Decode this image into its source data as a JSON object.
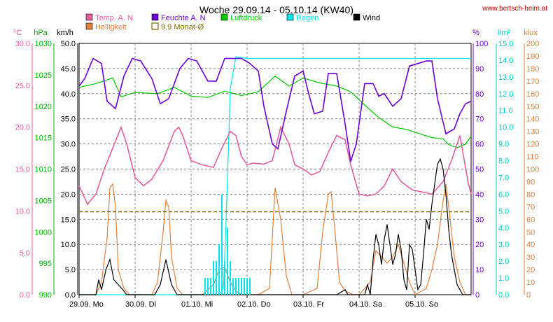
{
  "header": {
    "title": "Woche 29.09.14 - 05.10.14 (KW40)",
    "website": "www.bertsch-heim.at"
  },
  "colors": {
    "temp": "#e060a0",
    "humidity": "#6a00d0",
    "pressure": "#00c800",
    "rain": "#00e6e6",
    "wind": "#000000",
    "brightness": "#e08040",
    "avg": "#7a6a00",
    "pressure_axis": "#00b000",
    "rain_axis": "#00c8c8",
    "hum_axis": "#6a00d0",
    "klux_axis": "#e08040"
  },
  "legend": [
    {
      "label": "Temp. A. N",
      "color": "#e060a0"
    },
    {
      "label": "Feuchte A. N",
      "color": "#6a00d0"
    },
    {
      "label": "Luftdruck",
      "color": "#00c800"
    },
    {
      "label": "Regen",
      "color": "#00e6e6"
    },
    {
      "label": "Wind",
      "color": "#000000"
    },
    {
      "label": "Helligkeit",
      "color": "#e08040"
    },
    {
      "label": "9.9 Monat-Ø",
      "color": "#7a6a00"
    }
  ],
  "axes": {
    "temp": {
      "unit": "°C",
      "ticks": [
        "30.0",
        "25.0",
        "20.0",
        "15.0",
        "10.0",
        "5.0",
        "0.0"
      ]
    },
    "pressure": {
      "unit": "hPa",
      "ticks": [
        "1030",
        "1025",
        "1020",
        "1015",
        "1010",
        "1005",
        "1000",
        "995",
        "990"
      ]
    },
    "wind": {
      "unit": "km/h",
      "ticks": [
        "50.0",
        "45.0",
        "40.0",
        "35.0",
        "30.0",
        "25.0",
        "20.0",
        "15.0",
        "10.0",
        "5.0",
        "0.0"
      ]
    },
    "humidity": {
      "unit": "%",
      "ticks": [
        "100",
        "90",
        "80",
        "70",
        "60",
        "50",
        "40",
        "30",
        "20",
        "10",
        "0"
      ]
    },
    "rain": {
      "unit": "l/m²",
      "ticks": [
        "15.0",
        "14.0",
        "13.0",
        "12.0",
        "11.0",
        "10.0",
        "9.0",
        "8.0",
        "7.0",
        "6.0",
        "5.0",
        "4.0",
        "3.0",
        "2.0",
        "1.0",
        "0.0"
      ]
    },
    "klux": {
      "unit": "klux",
      "ticks": [
        "200",
        "190",
        "180",
        "170",
        "160",
        "150",
        "140",
        "130",
        "120",
        "110",
        "100",
        "90",
        "80",
        "70",
        "60",
        "50",
        "40",
        "30",
        "20",
        "10",
        "0"
      ]
    },
    "x": {
      "ticks": [
        "29.09.  Mo",
        "30.09.  Di",
        "01.10.  Mi",
        "02.10.  Do",
        "03.10.  Fr",
        "04.10.  Sa",
        "05.10.  So"
      ]
    }
  },
  "chart_data": {
    "type": "line",
    "title": "Woche 29.09.14 - 05.10.14 (KW40)",
    "x_unit": "days",
    "x_range": [
      0,
      7
    ],
    "ranges": {
      "temp": [
        0,
        30
      ],
      "pressure": [
        990,
        1030
      ],
      "wind": [
        0,
        50
      ],
      "humidity": [
        0,
        100
      ],
      "rain": [
        0,
        15
      ],
      "klux": [
        0,
        200
      ]
    },
    "series": [
      {
        "name": "Temp. A. N",
        "axis": "temp",
        "x": [
          0,
          0.15,
          0.3,
          0.45,
          0.6,
          0.75,
          0.85,
          1.0,
          1.15,
          1.3,
          1.5,
          1.7,
          1.78,
          1.85,
          2.0,
          2.2,
          2.4,
          2.55,
          2.7,
          2.8,
          2.9,
          3.0,
          3.1,
          3.3,
          3.45,
          3.6,
          3.75,
          3.85,
          4.0,
          4.15,
          4.3,
          4.45,
          4.6,
          4.75,
          4.85,
          5.0,
          5.15,
          5.3,
          5.45,
          5.6,
          5.75,
          5.95,
          6.1,
          6.3,
          6.5,
          6.65,
          6.8,
          6.95,
          7.0
        ],
        "values": [
          13,
          10.8,
          12,
          15,
          17.5,
          20,
          18,
          14,
          13,
          13.8,
          16,
          19.5,
          20,
          19,
          16,
          15.5,
          15.2,
          17.5,
          19.5,
          19,
          16.5,
          15.5,
          15.7,
          15.6,
          16,
          20,
          18,
          15.5,
          15,
          14.3,
          14.7,
          17,
          19,
          18.5,
          15.5,
          12,
          11.8,
          12,
          13,
          15,
          13.5,
          12.5,
          12.3,
          12,
          13.5,
          16,
          19,
          13.3,
          12
        ]
      },
      {
        "name": "Feuchte A. N",
        "axis": "humidity",
        "x": [
          0,
          0.1,
          0.25,
          0.4,
          0.5,
          0.65,
          0.8,
          0.95,
          1.1,
          1.3,
          1.45,
          1.6,
          1.8,
          1.95,
          2.1,
          2.3,
          2.45,
          2.6,
          2.75,
          2.9,
          3.05,
          3.2,
          3.3,
          3.45,
          3.55,
          3.6,
          3.7,
          3.85,
          4.0,
          4.1,
          4.2,
          4.35,
          4.45,
          4.6,
          4.75,
          4.85,
          4.95,
          5.1,
          5.25,
          5.35,
          5.45,
          5.6,
          5.75,
          5.9,
          6.05,
          6.2,
          6.3,
          6.4,
          6.55,
          6.7,
          6.8,
          6.9,
          7.0
        ],
        "values": [
          83,
          86,
          94,
          92,
          77,
          74,
          87,
          94,
          93,
          86,
          76,
          78,
          90,
          94,
          93,
          85,
          85,
          94,
          94,
          94,
          92,
          89,
          75,
          60,
          58,
          63,
          73,
          87,
          89,
          80,
          72,
          73,
          88,
          88,
          68,
          53,
          60,
          84,
          84,
          79,
          80,
          75,
          78,
          91,
          92,
          93,
          93,
          78,
          64,
          66,
          72,
          76,
          77
        ]
      },
      {
        "name": "Luftdruck",
        "axis": "pressure",
        "x": [
          0,
          0.3,
          0.6,
          0.75,
          1.0,
          1.4,
          1.7,
          2.0,
          2.3,
          2.6,
          2.9,
          3.2,
          3.5,
          3.75,
          4.0,
          4.3,
          4.6,
          4.85,
          5.1,
          5.35,
          5.6,
          5.85,
          6.05,
          6.3,
          6.5,
          6.6,
          6.75,
          6.9,
          7.0
        ],
        "values": [
          1023,
          1023.6,
          1024.5,
          1021.5,
          1022.2,
          1022,
          1023,
          1021.6,
          1021.4,
          1022.4,
          1021.7,
          1022.3,
          1024.8,
          1023.2,
          1024.5,
          1023.7,
          1023.2,
          1022.3,
          1020.2,
          1018.2,
          1016.7,
          1016.3,
          1015.7,
          1015,
          1014.8,
          1013.9,
          1013.4,
          1014,
          1015.2
        ]
      },
      {
        "name": "Regen",
        "axis": "rain",
        "x": [
          0,
          2.2,
          2.48,
          2.52,
          2.58,
          2.62,
          2.66,
          2.7,
          2.8,
          3.0,
          3.5,
          4.0,
          5.0,
          6.0,
          7.0
        ],
        "values": [
          0,
          0,
          0,
          0,
          0.5,
          4,
          8,
          12.3,
          14.2,
          14.1,
          14.1,
          14.1,
          14.1,
          14.1,
          14.1
        ]
      },
      {
        "name": "Wind",
        "axis": "wind",
        "x": [
          0,
          0.1,
          0.3,
          0.35,
          0.4,
          0.48,
          0.55,
          0.62,
          0.7,
          0.78,
          0.85,
          1.2,
          1.35,
          1.45,
          1.55,
          1.65,
          1.75,
          1.85,
          2.2,
          2.5,
          2.7,
          3.0,
          3.2,
          3.5,
          3.8,
          4.0,
          4.1,
          4.4,
          4.6,
          4.75,
          4.8,
          5.0,
          5.1,
          5.15,
          5.2,
          5.25,
          5.3,
          5.35,
          5.4,
          5.45,
          5.5,
          5.55,
          5.6,
          5.65,
          5.7,
          5.75,
          5.8,
          5.85,
          5.9,
          5.95,
          6.0,
          6.05,
          6.1,
          6.15,
          6.2,
          6.25,
          6.3,
          6.35,
          6.4,
          6.45,
          6.5,
          6.55,
          6.6,
          6.65,
          6.7,
          6.75,
          6.8,
          6.85,
          6.9,
          6.95,
          7.0
        ],
        "values": [
          0,
          0,
          0,
          3,
          1,
          5,
          7,
          3,
          2,
          1,
          0,
          0,
          0,
          2,
          7,
          2,
          0,
          0,
          0,
          0,
          0,
          0,
          0,
          0,
          0,
          0,
          0,
          0,
          0,
          1,
          0,
          0,
          0,
          2,
          0,
          7,
          12,
          10,
          6,
          11,
          14,
          10,
          6,
          8,
          12,
          9,
          3,
          1,
          10,
          9,
          5,
          1,
          2,
          8,
          15,
          13,
          18,
          22,
          26,
          27,
          25,
          20,
          13,
          8,
          5,
          2,
          1,
          0,
          0,
          0,
          0
        ]
      },
      {
        "name": "Helligkeit",
        "axis": "klux",
        "x": [
          0,
          0.3,
          0.4,
          0.5,
          0.55,
          0.6,
          0.65,
          0.7,
          0.8,
          0.9,
          1.0,
          1.3,
          1.4,
          1.5,
          1.55,
          1.6,
          1.65,
          1.75,
          1.85,
          2.0,
          2.2,
          2.4,
          2.5,
          2.6,
          2.7,
          2.8,
          2.9,
          3.0,
          3.2,
          3.4,
          3.45,
          3.5,
          3.6,
          3.7,
          3.8,
          4.0,
          4.25,
          4.35,
          4.45,
          4.5,
          4.55,
          4.65,
          4.75,
          4.9,
          5.0,
          5.2,
          5.3,
          5.4,
          5.5,
          5.6,
          5.7,
          5.8,
          5.9,
          6.0,
          6.2,
          6.3,
          6.4,
          6.5,
          6.55,
          6.6,
          6.7,
          6.8,
          6.9,
          7.0
        ],
        "values": [
          0,
          0,
          10,
          45,
          85,
          88,
          70,
          20,
          5,
          0,
          0,
          0,
          10,
          50,
          75,
          70,
          30,
          5,
          0,
          0,
          0,
          8,
          20,
          22,
          10,
          3,
          0,
          0,
          0,
          5,
          45,
          85,
          60,
          15,
          0,
          0,
          5,
          50,
          80,
          82,
          60,
          10,
          3,
          0,
          0,
          10,
          35,
          30,
          25,
          30,
          40,
          25,
          10,
          0,
          5,
          20,
          40,
          75,
          88,
          70,
          30,
          10,
          0,
          0
        ]
      },
      {
        "name": "9.9 Monat-Ø",
        "axis": "temp",
        "x": [
          0,
          7
        ],
        "values": [
          9.9,
          9.9
        ]
      }
    ]
  }
}
